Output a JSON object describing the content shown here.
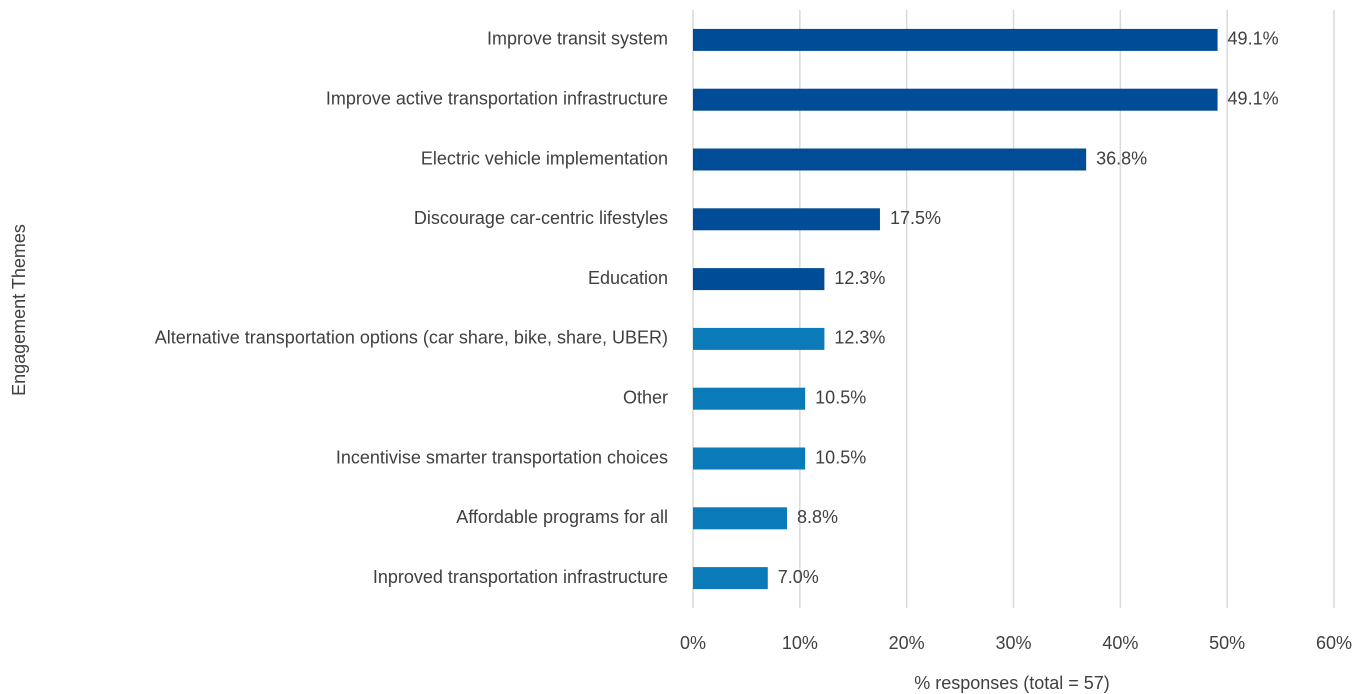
{
  "chart_data": {
    "type": "bar",
    "orientation": "horizontal",
    "x_label": "% responses (total = 57)",
    "y_label": "Engagement Themes",
    "categories": [
      "Improve transit system",
      "Improve active transportation infrastructure",
      "Electric vehicle implementation",
      "Discourage car-centric lifestyles",
      "Education",
      "Alternative transportation options (car share, bike, share, UBER)",
      "Other",
      "Incentivise smarter transportation choices",
      "Affordable programs for all",
      "Inproved transportation infrastructure"
    ],
    "values": [
      49.1,
      49.1,
      36.8,
      17.5,
      12.3,
      12.3,
      10.5,
      10.5,
      8.8,
      7.0
    ],
    "value_labels": [
      "49.1%",
      "49.1%",
      "36.8%",
      "17.5%",
      "12.3%",
      "12.3%",
      "10.5%",
      "10.5%",
      "8.8%",
      "7.0%"
    ],
    "colors": [
      "#004c97",
      "#004c97",
      "#004c97",
      "#004c97",
      "#004c97",
      "#0a7bb8",
      "#0a7bb8",
      "#0a7bb8",
      "#0a7bb8",
      "#0a7bb8"
    ],
    "xlim": [
      0,
      60
    ],
    "xticks": [
      {
        "value": 0,
        "label": "0%"
      },
      {
        "value": 10,
        "label": "10%"
      },
      {
        "value": 20,
        "label": "20%"
      },
      {
        "value": 30,
        "label": "30%"
      },
      {
        "value": 40,
        "label": "40%"
      },
      {
        "value": 50,
        "label": "50%"
      },
      {
        "value": 60,
        "label": "60%"
      }
    ],
    "grid": true
  }
}
